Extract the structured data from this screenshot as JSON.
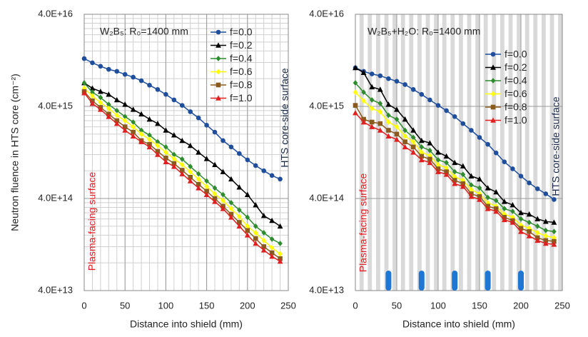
{
  "chart_data": [
    {
      "type": "line",
      "title": "W₂B₅: R₀=1400 mm",
      "ylabel": "Neutron fluence in HTS core (cm⁻²)",
      "xlabel": "Distance into shield (mm)",
      "annotations": [
        "Plasma-facing surface",
        "HTS core-side surface"
      ],
      "log_y": true,
      "grid": true,
      "legend": "upper right",
      "xlim": [
        0,
        250
      ],
      "xticks": [
        0,
        50,
        100,
        150,
        200,
        250
      ],
      "ylim": [
        40000000000000.0,
        4e+16
      ],
      "yticks": [
        {
          "value": 40000000000000.0,
          "label": "4.0E+13"
        },
        {
          "value": 400000000000000.0,
          "label": "4.0E+14"
        },
        {
          "value": 4000000000000000.0,
          "label": "4.0E+15"
        },
        {
          "value": 4e+16,
          "label": "4.0E+16"
        }
      ],
      "x": [
        0,
        10,
        20,
        30,
        40,
        50,
        60,
        70,
        80,
        90,
        100,
        110,
        120,
        130,
        140,
        150,
        160,
        170,
        180,
        190,
        200,
        210,
        220,
        230,
        240
      ],
      "series": [
        {
          "name": "f=0.0",
          "color": "#1f4e9c",
          "marker": "circle",
          "values": [
            1.32e+16,
            1.19e+16,
            1.09e+16,
            1.01e+16,
            9600000000000000.0,
            8900000000000000.0,
            8300000000000000.0,
            7600000000000000.0,
            6800000000000000.0,
            6100000000000000.0,
            5400000000000000.0,
            4700000000000000.0,
            4100000000000000.0,
            3500000000000000.0,
            3000000000000000.0,
            2500000000000000.0,
            2100000000000000.0,
            1700000000000000.0,
            1450000000000000.0,
            1230000000000000.0,
            1050000000000000.0,
            910000000000000.0,
            800000000000000.0,
            710000000000000.0,
            650000000000000.0
          ]
        },
        {
          "name": "f=0.2",
          "color": "#000000",
          "marker": "triangle",
          "values": [
            7200000000000000.0,
            6300000000000000.0,
            5800000000000000.0,
            5400000000000000.0,
            4700000000000000.0,
            4200000000000000.0,
            3700000000000000.0,
            3300000000000000.0,
            2900000000000000.0,
            2600000000000000.0,
            2200000000000000.0,
            1950000000000000.0,
            1700000000000000.0,
            1500000000000000.0,
            1270000000000000.0,
            1080000000000000.0,
            930000000000000.0,
            780000000000000.0,
            650000000000000.0,
            530000000000000.0,
            440000000000000.0,
            340000000000000.0,
            260000000000000.0,
            230000000000000.0,
            200000000000000.0
          ]
        },
        {
          "name": "f=0.4",
          "color": "#2e8b2e",
          "marker": "diamond",
          "values": [
            7200000000000000.0,
            5700000000000000.0,
            5000000000000000.0,
            4200000000000000.0,
            3600000000000000.0,
            3100000000000000.0,
            2700000000000000.0,
            2200000000000000.0,
            1950000000000000.0,
            1650000000000000.0,
            1450000000000000.0,
            1200000000000000.0,
            1070000000000000.0,
            890000000000000.0,
            740000000000000.0,
            620000000000000.0,
            520000000000000.0,
            440000000000000.0,
            360000000000000.0,
            300000000000000.0,
            250000000000000.0,
            200000000000000.0,
            170000000000000.0,
            145000000000000.0,
            130000000000000.0
          ]
        },
        {
          "name": "f=0.6",
          "color": "#ffff00",
          "marker": "diamond",
          "values": [
            6300000000000000.0,
            5200000000000000.0,
            4400000000000000.0,
            3800000000000000.0,
            3200000000000000.0,
            2800000000000000.0,
            2400000000000000.0,
            2000000000000000.0,
            1750000000000000.0,
            1500000000000000.0,
            1270000000000000.0,
            1080000000000000.0,
            930000000000000.0,
            780000000000000.0,
            650000000000000.0,
            540000000000000.0,
            450000000000000.0,
            380000000000000.0,
            310000000000000.0,
            254000000000000.0,
            200000000000000.0,
            170000000000000.0,
            140000000000000.0,
            117000000000000.0,
            100000000000000.0
          ]
        },
        {
          "name": "f=0.8",
          "color": "#8b5a1e",
          "marker": "square",
          "values": [
            5800000000000000.0,
            4600000000000000.0,
            3900000000000000.0,
            3300000000000000.0,
            2800000000000000.0,
            2400000000000000.0,
            2100000000000000.0,
            1700000000000000.0,
            1550000000000000.0,
            1300000000000000.0,
            1100000000000000.0,
            960000000000000.0,
            810000000000000.0,
            680000000000000.0,
            570000000000000.0,
            480000000000000.0,
            400000000000000.0,
            330000000000000.0,
            270000000000000.0,
            220000000000000.0,
            180000000000000.0,
            147000000000000.0,
            120000000000000.0,
            103000000000000.0,
            89000000000000.0
          ]
        },
        {
          "name": "f=1.0",
          "color": "#e02020",
          "marker": "triangle",
          "values": [
            5600000000000000.0,
            4300000000000000.0,
            3700000000000000.0,
            3100000000000000.0,
            2600000000000000.0,
            2200000000000000.0,
            1900000000000000.0,
            1650000000000000.0,
            1450000000000000.0,
            1200000000000000.0,
            1000000000000000.0,
            890000000000000.0,
            740000000000000.0,
            620000000000000.0,
            520000000000000.0,
            440000000000000.0,
            370000000000000.0,
            310000000000000.0,
            250000000000000.0,
            200000000000000.0,
            160000000000000.0,
            130000000000000.0,
            110000000000000.0,
            94000000000000.0,
            83000000000000.0
          ]
        }
      ]
    },
    {
      "type": "line",
      "title": "W₂B₅+H₂O: R₀=1400 mm",
      "xlabel": "Distance into shield (mm)",
      "annotations": [
        "Plasma-facing surface",
        "HTS core-side surface"
      ],
      "log_y": true,
      "grid": true,
      "legend": "upper right",
      "xlim": [
        0,
        250
      ],
      "xticks": [
        0,
        50,
        100,
        150,
        200,
        250
      ],
      "ylim": [
        40000000000000.0,
        4e+16
      ],
      "yticks": [
        {
          "value": 40000000000000.0,
          "label": "4.0E+13"
        },
        {
          "value": 400000000000000.0,
          "label": "4.0E+14"
        },
        {
          "value": 4000000000000000.0,
          "label": "4.0E+15"
        },
        {
          "value": 4e+16,
          "label": "4.0E+16"
        }
      ],
      "markers": [
        40,
        80,
        120,
        160,
        200
      ],
      "x": [
        0,
        10,
        20,
        30,
        40,
        50,
        60,
        70,
        80,
        90,
        100,
        110,
        120,
        130,
        140,
        150,
        160,
        170,
        180,
        190,
        200,
        210,
        220,
        230,
        240
      ],
      "series": [
        {
          "name": "f=0.0",
          "color": "#1f4e9c",
          "marker": "circle",
          "values": [
            1.05e+16,
            9600000000000000.0,
            9000000000000000.0,
            8600000000000000.0,
            8000000000000000.0,
            7500000000000000.0,
            6900000000000000.0,
            6100000000000000.0,
            5400000000000000.0,
            4700000000000000.0,
            4100000000000000.0,
            3600000000000000.0,
            3100000000000000.0,
            2600000000000000.0,
            2200000000000000.0,
            1840000000000000.0,
            1550000000000000.0,
            1250000000000000.0,
            1000000000000000.0,
            840000000000000.0,
            700000000000000.0,
            590000000000000.0,
            510000000000000.0,
            450000000000000.0,
            390000000000000.0
          ]
        },
        {
          "name": "f=0.2",
          "color": "#000000",
          "marker": "triangle",
          "values": [
            1.05e+16,
            9300000000000000.0,
            6500000000000000.0,
            6100000000000000.0,
            4200000000000000.0,
            3700000000000000.0,
            2900000000000000.0,
            2200000000000000.0,
            1700000000000000.0,
            1600000000000000.0,
            1270000000000000.0,
            1150000000000000.0,
            980000000000000.0,
            900000000000000.0,
            700000000000000.0,
            650000000000000.0,
            520000000000000.0,
            470000000000000.0,
            370000000000000.0,
            340000000000000.0,
            280000000000000.0,
            270000000000000.0,
            240000000000000.0,
            225000000000000.0,
            220000000000000.0
          ]
        },
        {
          "name": "f=0.4",
          "color": "#2e8b2e",
          "marker": "diamond",
          "values": [
            7200000000000000.0,
            5700000000000000.0,
            4700000000000000.0,
            4300000000000000.0,
            3200000000000000.0,
            2900000000000000.0,
            2200000000000000.0,
            1840000000000000.0,
            1450000000000000.0,
            1330000000000000.0,
            1050000000000000.0,
            980000000000000.0,
            780000000000000.0,
            730000000000000.0,
            560000000000000.0,
            520000000000000.0,
            410000000000000.0,
            380000000000000.0,
            310000000000000.0,
            290000000000000.0,
            240000000000000.0,
            220000000000000.0,
            200000000000000.0,
            180000000000000.0,
            175000000000000.0
          ]
        },
        {
          "name": "f=0.6",
          "color": "#ffff00",
          "marker": "diamond",
          "values": [
            5700000000000000.0,
            4600000000000000.0,
            3800000000000000.0,
            3500000000000000.0,
            2700000000000000.0,
            2400000000000000.0,
            1900000000000000.0,
            1650000000000000.0,
            1270000000000000.0,
            1170000000000000.0,
            930000000000000.0,
            860000000000000.0,
            690000000000000.0,
            630000000000000.0,
            500000000000000.0,
            450000000000000.0,
            360000000000000.0,
            330000000000000.0,
            270000000000000.0,
            250000000000000.0,
            205000000000000.0,
            190000000000000.0,
            170000000000000.0,
            157000000000000.0,
            150000000000000.0
          ]
        },
        {
          "name": "f=0.8",
          "color": "#8b5a1e",
          "marker": "square",
          "values": [
            4100000000000000.0,
            2900000000000000.0,
            2700000000000000.0,
            2600000000000000.0,
            2200000000000000.0,
            2000000000000000.0,
            1650000000000000.0,
            1450000000000000.0,
            1150000000000000.0,
            1070000000000000.0,
            840000000000000.0,
            780000000000000.0,
            630000000000000.0,
            580000000000000.0,
            450000000000000.0,
            420000000000000.0,
            330000000000000.0,
            310000000000000.0,
            250000000000000.0,
            230000000000000.0,
            190000000000000.0,
            175000000000000.0,
            150000000000000.0,
            140000000000000.0,
            137000000000000.0
          ]
        },
        {
          "name": "f=1.0",
          "color": "#e02020",
          "marker": "triangle",
          "values": [
            3400000000000000.0,
            2700000000000000.0,
            2400000000000000.0,
            2200000000000000.0,
            1900000000000000.0,
            1750000000000000.0,
            1450000000000000.0,
            1270000000000000.0,
            1050000000000000.0,
            980000000000000.0,
            780000000000000.0,
            730000000000000.0,
            580000000000000.0,
            540000000000000.0,
            420000000000000.0,
            390000000000000.0,
            310000000000000.0,
            290000000000000.0,
            235000000000000.0,
            220000000000000.0,
            175000000000000.0,
            157000000000000.0,
            140000000000000.0,
            130000000000000.0,
            127000000000000.0
          ]
        }
      ]
    }
  ]
}
